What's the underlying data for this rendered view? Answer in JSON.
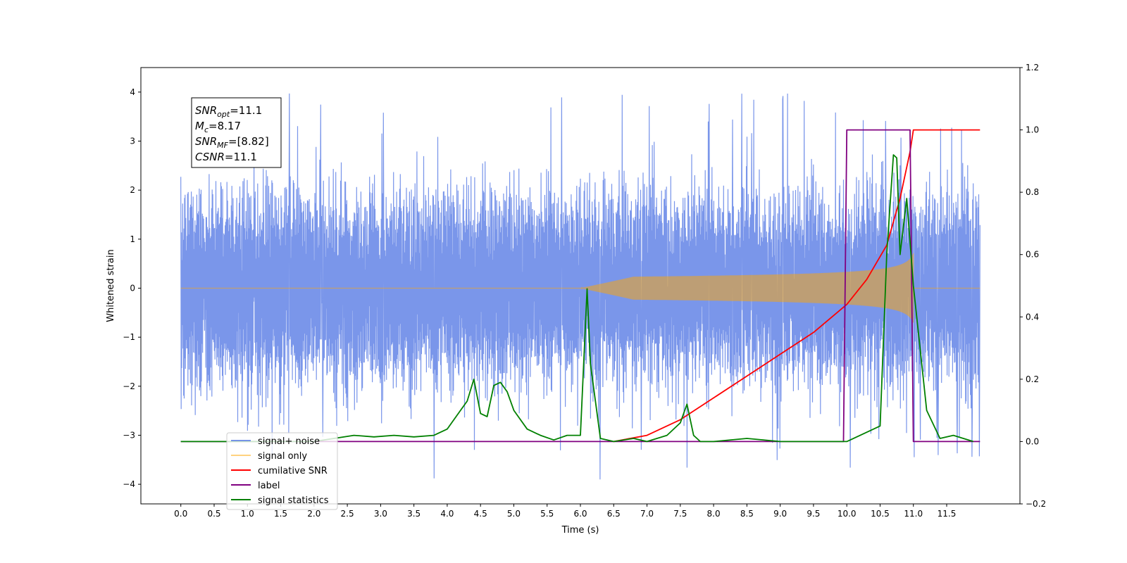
{
  "chart_data": {
    "type": "line",
    "xlabel": "Time (s)",
    "ylabel_left": "Whitened strain",
    "xlim": [
      -0.6,
      12.6
    ],
    "ylim_left": [
      -4.4,
      4.5
    ],
    "ylim_right": [
      -0.2,
      1.2
    ],
    "x_ticks": [
      "0.0",
      "0.5",
      "1.0",
      "1.5",
      "2.0",
      "2.5",
      "3.0",
      "3.5",
      "4.0",
      "4.5",
      "5.0",
      "5.5",
      "6.0",
      "6.5",
      "7.0",
      "7.5",
      "8.0",
      "8.5",
      "9.0",
      "9.5",
      "10.0",
      "10.5",
      "11.0",
      "11.5"
    ],
    "y_ticks_left": [
      "4",
      "3",
      "2",
      "1",
      "0",
      "−1",
      "−2",
      "−3",
      "−4"
    ],
    "y_ticks_right": [
      "1.2",
      "1.0",
      "0.8",
      "0.6",
      "0.4",
      "0.2",
      "0.0",
      "−0.2"
    ],
    "annotation": {
      "snr_opt": "11.1",
      "mc": "8.17",
      "snr_mf": "[8.82]",
      "csnr": "11.1"
    },
    "legend": {
      "placement": "lower-left",
      "entries": [
        "signal+ noise",
        "signal only",
        "cumilative SNR",
        "label",
        "signal statistics"
      ]
    },
    "series": [
      {
        "name": "signal+ noise",
        "axis": "left",
        "color": "#4169e1",
        "description_values": "noise with envelope about +/-2.2 and spikes to about +/-4",
        "x_range": [
          0.0,
          12.0
        ]
      },
      {
        "name": "signal only",
        "axis": "left",
        "color": "#ffa500",
        "chirp": {
          "x_start": 6.0,
          "x_end": 11.0,
          "peak_amplitude": 0.75
        }
      },
      {
        "name": "cumilative SNR",
        "axis": "right",
        "color": "#ff0000",
        "x": [
          6.5,
          7.0,
          7.5,
          8.0,
          8.5,
          9.0,
          9.5,
          10.0,
          10.3,
          10.6,
          10.8,
          10.95,
          11.0,
          12.0
        ],
        "y": [
          0.0,
          0.02,
          0.07,
          0.14,
          0.21,
          0.28,
          0.35,
          0.44,
          0.52,
          0.63,
          0.78,
          0.93,
          1.0,
          1.0
        ]
      },
      {
        "name": "label",
        "axis": "right",
        "color": "#800080",
        "x": [
          0.0,
          9.95,
          10.0,
          10.95,
          11.0,
          12.0
        ],
        "y": [
          0.0,
          0.0,
          1.0,
          1.0,
          0.0,
          0.0
        ]
      },
      {
        "name": "signal statistics",
        "axis": "right",
        "color": "#008000",
        "x": [
          0.0,
          2.0,
          2.3,
          2.6,
          2.9,
          3.2,
          3.5,
          3.8,
          4.0,
          4.2,
          4.3,
          4.4,
          4.5,
          4.6,
          4.7,
          4.8,
          4.9,
          5.0,
          5.2,
          5.4,
          5.6,
          5.8,
          6.0,
          6.1,
          6.15,
          6.3,
          6.5,
          6.8,
          7.0,
          7.3,
          7.5,
          7.6,
          7.7,
          7.8,
          8.0,
          8.5,
          9.0,
          9.5,
          10.0,
          10.5,
          10.6,
          10.7,
          10.75,
          10.8,
          10.9,
          11.0,
          11.1,
          11.2,
          11.4,
          11.6,
          11.9
        ],
        "y": [
          0.0,
          0.0,
          0.01,
          0.02,
          0.015,
          0.02,
          0.015,
          0.02,
          0.04,
          0.1,
          0.13,
          0.2,
          0.09,
          0.08,
          0.18,
          0.19,
          0.16,
          0.1,
          0.04,
          0.02,
          0.005,
          0.02,
          0.02,
          0.49,
          0.25,
          0.01,
          0.0,
          0.01,
          0.0,
          0.02,
          0.06,
          0.12,
          0.02,
          0.0,
          0.0,
          0.01,
          0.0,
          0.0,
          0.0,
          0.05,
          0.6,
          0.92,
          0.91,
          0.6,
          0.78,
          0.5,
          0.3,
          0.1,
          0.01,
          0.02,
          0.0
        ]
      }
    ]
  }
}
